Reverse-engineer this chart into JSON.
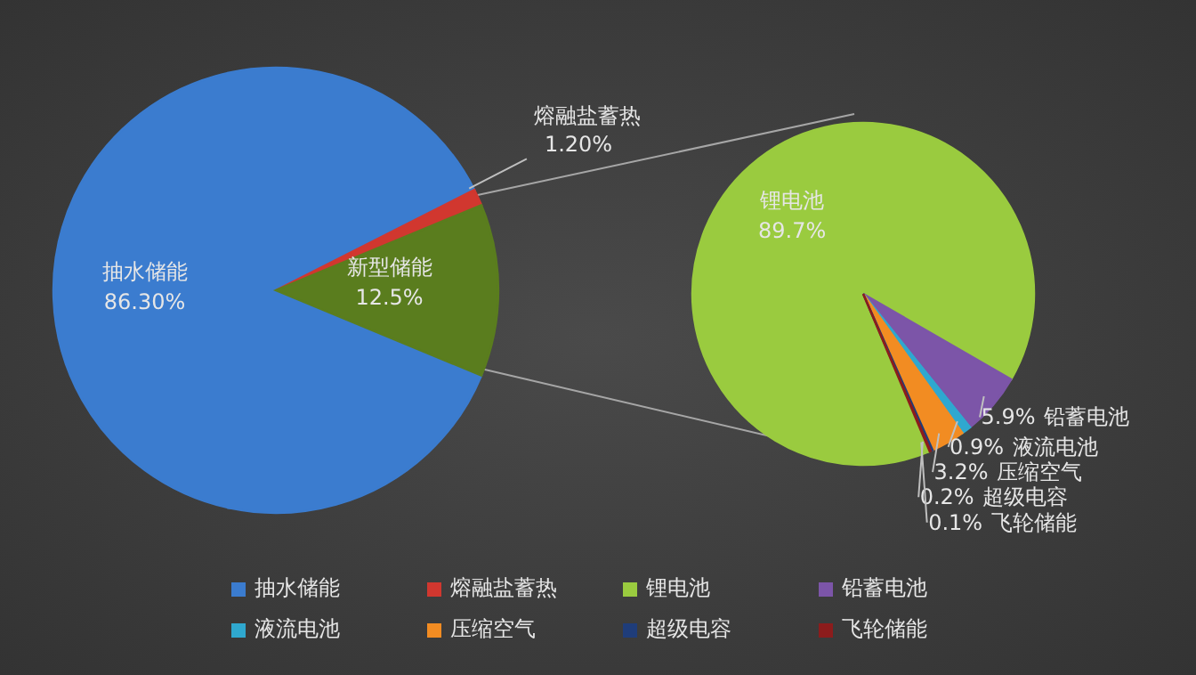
{
  "chart_data": [
    {
      "type": "pie",
      "categories": [
        "抽水储能",
        "熔融盐蓄热",
        "新型储能"
      ],
      "values": [
        86.3,
        1.2,
        12.5
      ],
      "value_labels": [
        "86.30%",
        "1.20%",
        "12.5%"
      ],
      "colors": [
        "#3b7ccf",
        "#d1372f",
        "#5a7d1e"
      ],
      "legend": "bottom"
    },
    {
      "type": "pie",
      "categories": [
        "锂电池",
        "铅蓄电池",
        "液流电池",
        "压缩空气",
        "超级电容",
        "飞轮储能"
      ],
      "values": [
        89.7,
        5.9,
        0.9,
        3.2,
        0.2,
        0.1
      ],
      "value_labels": [
        "89.7%",
        "5.9%",
        "0.9%",
        "3.2%",
        "0.2%",
        "0.1%"
      ],
      "colors": [
        "#9acb3f",
        "#7c55a8",
        "#2fa8cf",
        "#f28c22",
        "#1f3d7a",
        "#8c1c1c"
      ],
      "legend": "bottom"
    }
  ]
}
